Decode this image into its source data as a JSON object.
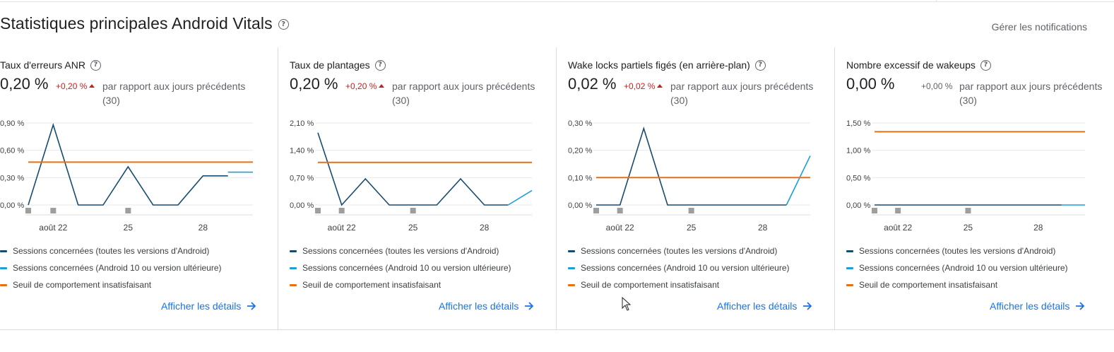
{
  "header": {
    "title": "Statistiques principales Android Vitals",
    "manage_label": "Gérer les notifications"
  },
  "colors": {
    "all_versions": "#174c6f",
    "android10": "#1a9fd9",
    "threshold": "#e67012",
    "marker": "#9e9e9e",
    "link": "#1a73e8",
    "negative": "#c5221f"
  },
  "cards": [
    {
      "title": "Taux d'erreurs ANR",
      "value": "0,20 %",
      "delta": "+0,20 %",
      "delta_up": true,
      "compare_text": "par rapport aux jours précédents (30)",
      "details_label": "Afficher les détails",
      "legend": [
        "Sessions concernées (toutes les versions d'Android)",
        "Sessions concernées (Android 10 ou version ultérieure)",
        "Seuil de comportement insatisfaisant"
      ],
      "chart_data": {
        "type": "line",
        "y_ticks": [
          "0,90 %",
          "0,60 %",
          "0,30 %",
          "0,00 %"
        ],
        "y_tick_values": [
          0.9,
          0.6,
          0.3,
          0.0
        ],
        "ylim": [
          0,
          0.9
        ],
        "x_ticks": [
          "août 22",
          "25",
          "28"
        ],
        "x_tick_index": [
          1,
          4,
          7
        ],
        "x": [
          0,
          1,
          2,
          3,
          4,
          5,
          6,
          7,
          8,
          9
        ],
        "series": [
          {
            "name": "Sessions concernées (toutes les versions d'Android)",
            "values": [
              0.0,
              0.88,
              0.0,
              0.0,
              0.42,
              0.0,
              0.0,
              0.32,
              0.32,
              null
            ]
          },
          {
            "name": "Sessions concernées (Android 10 ou version ultérieure)",
            "values": [
              null,
              null,
              null,
              null,
              null,
              null,
              null,
              null,
              0.36,
              0.36
            ]
          },
          {
            "name": "Seuil de comportement insatisfaisant",
            "values": [
              0.47,
              0.47,
              0.47,
              0.47,
              0.47,
              0.47,
              0.47,
              0.47,
              0.47,
              0.47
            ]
          }
        ],
        "markers_index": [
          0,
          1,
          4
        ]
      }
    },
    {
      "title": "Taux de plantages",
      "value": "0,20 %",
      "delta": "+0,20 %",
      "delta_up": true,
      "compare_text": "par rapport aux jours précédents (30)",
      "details_label": "Afficher les détails",
      "legend": [
        "Sessions concernées (toutes les versions d'Android)",
        "Sessions concernées (Android 10 ou version ultérieure)",
        "Seuil de comportement insatisfaisant"
      ],
      "chart_data": {
        "type": "line",
        "y_ticks": [
          "2,10 %",
          "1,40 %",
          "0,70 %",
          "0,00 %"
        ],
        "y_tick_values": [
          2.1,
          1.4,
          0.7,
          0.0
        ],
        "ylim": [
          0,
          2.1
        ],
        "x_ticks": [
          "août 22",
          "25",
          "28"
        ],
        "x_tick_index": [
          1,
          4,
          7
        ],
        "x": [
          0,
          1,
          2,
          3,
          4,
          5,
          6,
          7,
          8,
          9
        ],
        "series": [
          {
            "name": "Sessions concernées (toutes les versions d'Android)",
            "values": [
              1.85,
              0.0,
              0.67,
              0.0,
              0.0,
              0.0,
              0.67,
              0.0,
              0.0,
              null
            ]
          },
          {
            "name": "Sessions concernées (Android 10 ou version ultérieure)",
            "values": [
              null,
              null,
              null,
              null,
              null,
              null,
              null,
              null,
              0.0,
              0.37
            ]
          },
          {
            "name": "Seuil de comportement insatisfaisant",
            "values": [
              1.09,
              1.09,
              1.09,
              1.09,
              1.09,
              1.09,
              1.09,
              1.09,
              1.09,
              1.09
            ]
          }
        ],
        "markers_index": [
          0,
          1,
          4
        ]
      }
    },
    {
      "title": "Wake locks partiels figés (en arrière-plan)",
      "value": "0,02 %",
      "delta": "+0,02 %",
      "delta_up": true,
      "compare_text": "par rapport aux jours précédents (30)",
      "details_label": "Afficher les détails",
      "legend": [
        "Sessions concernées (toutes les versions d'Android)",
        "Sessions concernées (Android 10 ou version ultérieure)",
        "Seuil de comportement insatisfaisant"
      ],
      "chart_data": {
        "type": "line",
        "y_ticks": [
          "0,30 %",
          "0,20 %",
          "0,10 %",
          "0,00 %"
        ],
        "y_tick_values": [
          0.3,
          0.2,
          0.1,
          0.0
        ],
        "ylim": [
          0,
          0.3
        ],
        "x_ticks": [
          "août 22",
          "25",
          "28"
        ],
        "x_tick_index": [
          1,
          4,
          7
        ],
        "x": [
          0,
          1,
          2,
          3,
          4,
          5,
          6,
          7,
          8,
          9
        ],
        "series": [
          {
            "name": "Sessions concernées (toutes les versions d'Android)",
            "values": [
              0.0,
              0.0,
              0.28,
              0.0,
              0.0,
              0.0,
              0.0,
              0.0,
              0.0,
              null
            ]
          },
          {
            "name": "Sessions concernées (Android 10 ou version ultérieure)",
            "values": [
              null,
              null,
              null,
              null,
              null,
              null,
              null,
              null,
              0.0,
              0.18
            ]
          },
          {
            "name": "Seuil de comportement insatisfaisant",
            "values": [
              0.1,
              0.1,
              0.1,
              0.1,
              0.1,
              0.1,
              0.1,
              0.1,
              0.1,
              0.1
            ]
          }
        ],
        "markers_index": [
          0,
          1,
          4
        ]
      }
    },
    {
      "title": "Nombre excessif de wakeups",
      "value": "0,00 %",
      "delta": "+0,00 %",
      "delta_up": false,
      "compare_text": "par rapport aux jours précédents (30)",
      "details_label": "Afficher les détails",
      "legend": [
        "Sessions concernées (toutes les versions d'Android)",
        "Sessions concernées (Android 10 ou version ultérieure)",
        "Seuil de comportement insatisfaisant"
      ],
      "chart_data": {
        "type": "line",
        "y_ticks": [
          "1,50 %",
          "1,00 %",
          "0,50 %",
          "0,00 %"
        ],
        "y_tick_values": [
          1.5,
          1.0,
          0.5,
          0.0
        ],
        "ylim": [
          0,
          1.5
        ],
        "x_ticks": [
          "août 22",
          "25",
          "28"
        ],
        "x_tick_index": [
          1,
          4,
          7
        ],
        "x": [
          0,
          1,
          2,
          3,
          4,
          5,
          6,
          7,
          8,
          9
        ],
        "series": [
          {
            "name": "Sessions concernées (toutes les versions d'Android)",
            "values": [
              0.0,
              0.0,
              0.0,
              0.0,
              0.0,
              0.0,
              0.0,
              0.0,
              0.0,
              null
            ]
          },
          {
            "name": "Sessions concernées (Android 10 ou version ultérieure)",
            "values": [
              null,
              null,
              null,
              null,
              null,
              null,
              null,
              null,
              0.0,
              0.0
            ]
          },
          {
            "name": "Seuil de comportement insatisfaisant",
            "values": [
              1.34,
              1.34,
              1.34,
              1.34,
              1.34,
              1.34,
              1.34,
              1.34,
              1.34,
              1.34
            ]
          }
        ],
        "markers_index": [
          0,
          1,
          4
        ]
      }
    }
  ]
}
